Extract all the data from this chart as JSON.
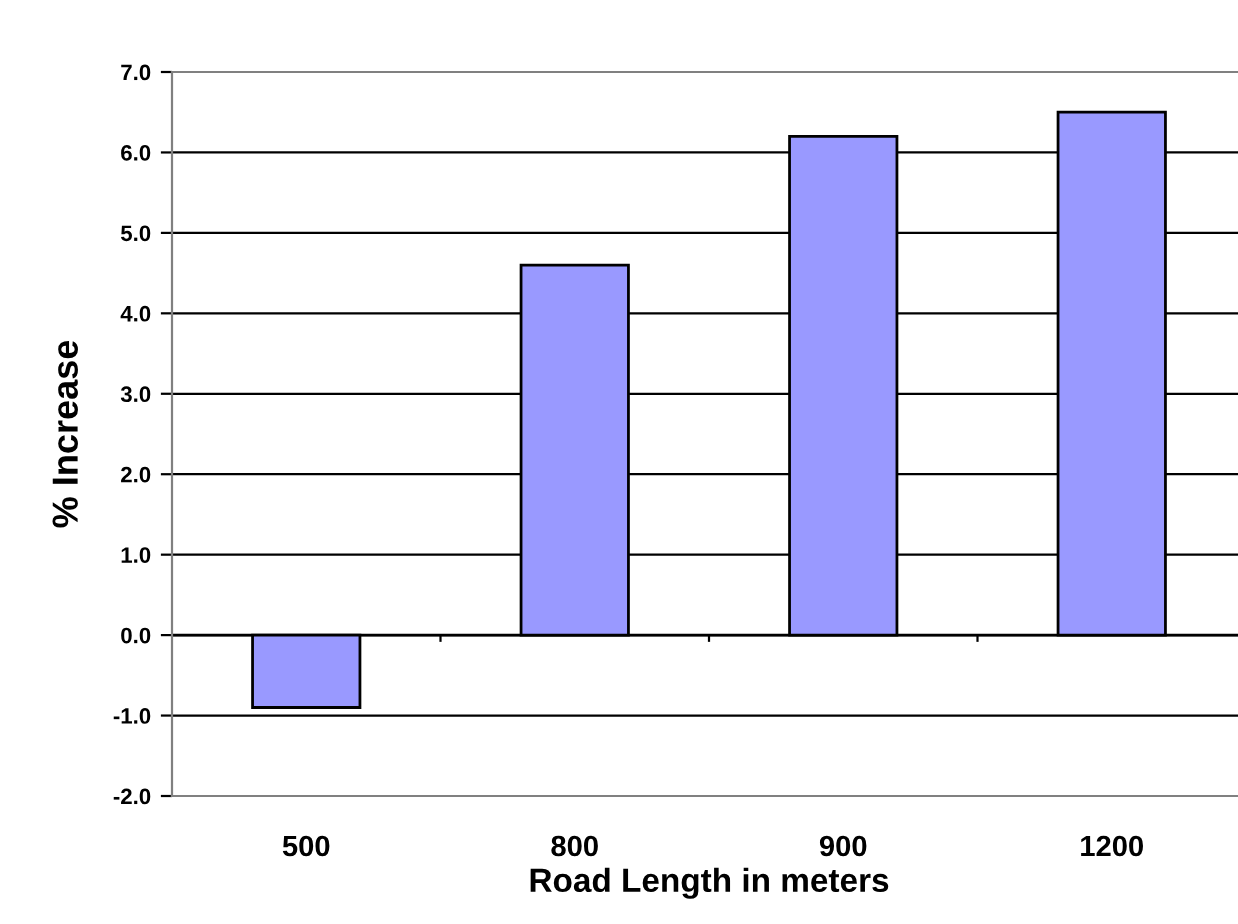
{
  "chart_data": {
    "type": "bar",
    "xlabel": "Road Length in meters",
    "ylabel": "% Increase",
    "categories": [
      "500",
      "800",
      "900",
      "1200"
    ],
    "values": [
      -0.9,
      4.6,
      6.2,
      6.5
    ],
    "color": "#9999ff",
    "ylim": [
      -2,
      7
    ],
    "yticks": [
      {
        "value": -2,
        "label": "-2.0"
      },
      {
        "value": -1,
        "label": "-1.0"
      },
      {
        "value": 0,
        "label": "0.0"
      },
      {
        "value": 1,
        "label": "1.0"
      },
      {
        "value": 2,
        "label": "2.0"
      },
      {
        "value": 3,
        "label": "3.0"
      },
      {
        "value": 4,
        "label": "4.0"
      },
      {
        "value": 5,
        "label": "5.0"
      },
      {
        "value": 6,
        "label": "6.0"
      },
      {
        "value": 7,
        "label": "7.0"
      }
    ],
    "grid": "y"
  }
}
